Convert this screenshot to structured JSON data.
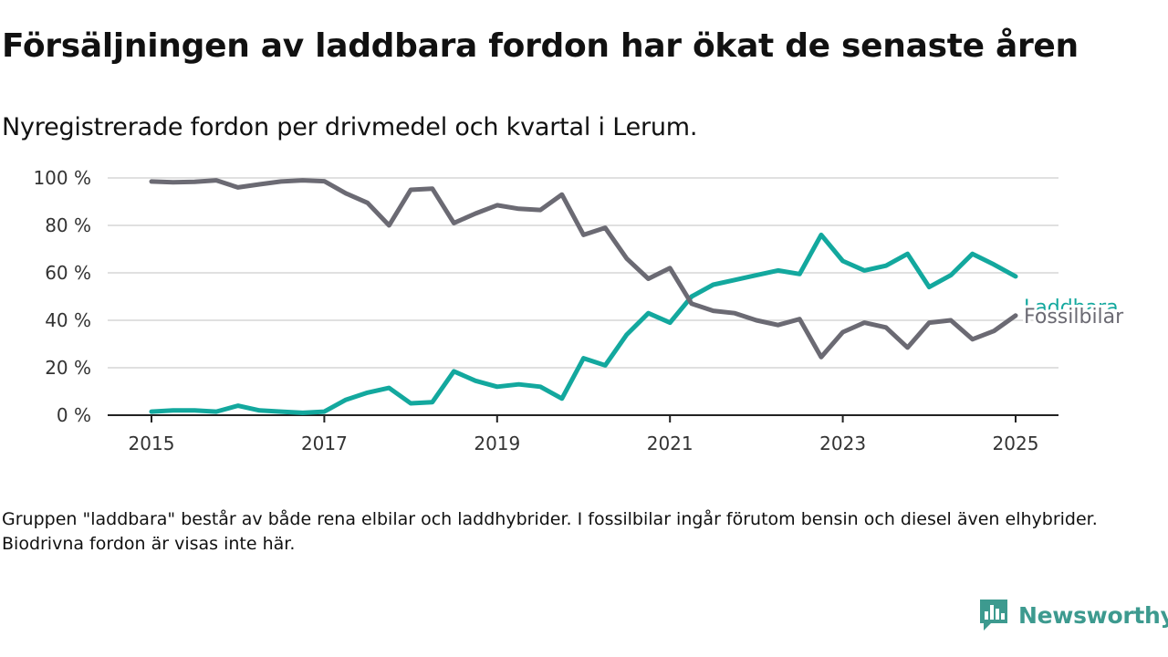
{
  "header": {
    "title": "Försäljningen av laddbara fordon har ökat de senaste åren",
    "subtitle": "Nyregistrerade fordon per drivmedel och kvartal i Lerum."
  },
  "footnote": "Gruppen \"laddbara\" består av både rena elbilar och laddhybrider. I fossilbilar ingår förutom bensin och diesel även elhybrider. Biodrivna fordon är visas inte här.",
  "brand": {
    "name": "Newsworthy",
    "icon": "newsworthy-logo-icon",
    "color": "#3d9a8f"
  },
  "chart_data": {
    "type": "line",
    "title": "",
    "xlabel": "",
    "ylabel": "",
    "xlim": [
      2014.75,
      2025.25
    ],
    "ylim": [
      0,
      100
    ],
    "y_unit": "%",
    "y_ticks": [
      0,
      20,
      40,
      60,
      80,
      100
    ],
    "y_tick_labels": [
      "0 %",
      "20 %",
      "40 %",
      "60 %",
      "80 %",
      "100 %"
    ],
    "x_ticks": [
      2015,
      2017,
      2019,
      2021,
      2023,
      2025
    ],
    "x_tick_labels": [
      "2015",
      "2017",
      "2019",
      "2021",
      "2023",
      "2025"
    ],
    "grid": "horizontal",
    "legend": "direct labels at line ends",
    "x": [
      "2015-Q1",
      "2015-Q2",
      "2015-Q3",
      "2015-Q4",
      "2016-Q1",
      "2016-Q2",
      "2016-Q3",
      "2016-Q4",
      "2017-Q1",
      "2017-Q2",
      "2017-Q3",
      "2017-Q4",
      "2018-Q1",
      "2018-Q2",
      "2018-Q3",
      "2018-Q4",
      "2019-Q1",
      "2019-Q2",
      "2019-Q3",
      "2019-Q4",
      "2020-Q1",
      "2020-Q2",
      "2020-Q3",
      "2020-Q4",
      "2021-Q1",
      "2021-Q2",
      "2021-Q3",
      "2021-Q4",
      "2022-Q1",
      "2022-Q2",
      "2022-Q3",
      "2022-Q4",
      "2023-Q1",
      "2023-Q2",
      "2023-Q3",
      "2023-Q4",
      "2024-Q1",
      "2024-Q2",
      "2024-Q3",
      "2024-Q4",
      "2025-Q1"
    ],
    "series": [
      {
        "name": "Laddbara",
        "color": "#13a89e",
        "values": [
          1.5,
          2,
          2,
          1.5,
          4,
          2,
          1.5,
          1,
          1.5,
          6.5,
          9.5,
          11.5,
          5,
          5.5,
          18.5,
          14.5,
          12,
          13,
          12,
          7,
          24,
          21,
          34,
          43,
          39,
          50,
          55,
          57,
          59,
          61,
          59.5,
          76,
          65,
          61,
          63,
          68,
          54,
          59,
          68,
          63.5,
          58.5
        ]
      },
      {
        "name": "Fossilbilar",
        "color": "#6b6a73",
        "values": [
          98.5,
          98.2,
          98.4,
          99,
          96,
          97.3,
          98.5,
          99,
          98.6,
          93.5,
          89.5,
          80,
          95,
          95.5,
          81,
          85,
          88.5,
          87,
          86.5,
          93,
          76,
          79,
          66,
          57.5,
          62,
          47,
          44,
          43,
          40,
          38,
          40.5,
          24.5,
          35,
          39,
          37,
          28.5,
          39,
          40,
          32,
          35.5,
          42
        ]
      }
    ]
  }
}
